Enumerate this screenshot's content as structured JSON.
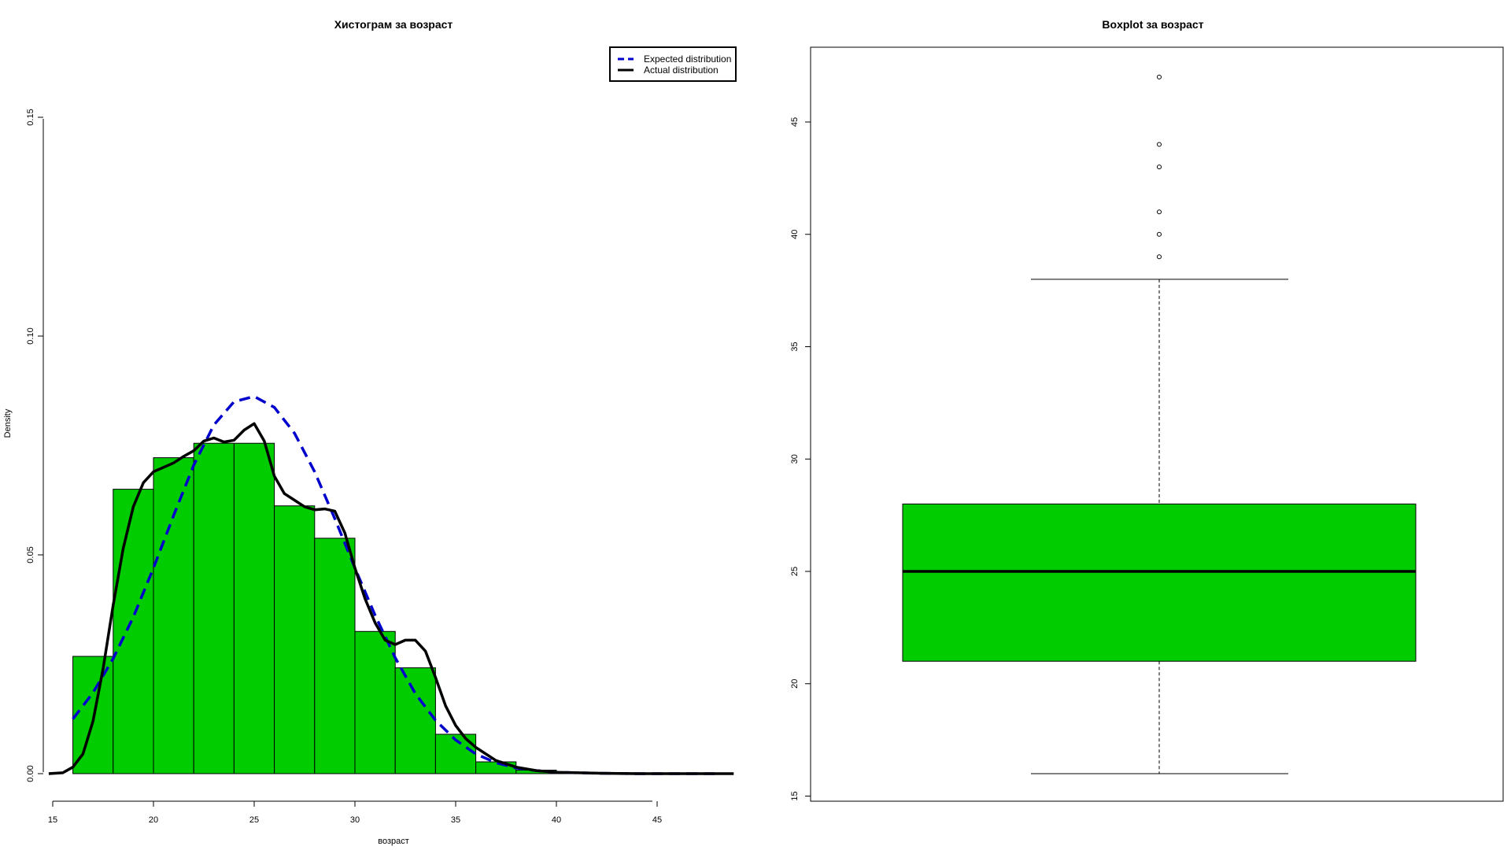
{
  "colors": {
    "fill": "#00cc00",
    "expected": "#0000cc",
    "actual": "#000000"
  },
  "chart_data": [
    {
      "type": "bar",
      "title": "Хистограм за  возраст",
      "xlabel": "возраст",
      "ylabel": "Density",
      "xlim": [
        15,
        49
      ],
      "ylim": [
        0,
        0.15
      ],
      "x_ticks": [
        15,
        20,
        25,
        30,
        35,
        40,
        45
      ],
      "y_ticks": [
        "0.00",
        "0.05",
        "0.10",
        "0.15"
      ],
      "bins": [
        {
          "from": 16,
          "to": 18,
          "density": 0.0268
        },
        {
          "from": 18,
          "to": 20,
          "density": 0.065
        },
        {
          "from": 20,
          "to": 22,
          "density": 0.0722
        },
        {
          "from": 22,
          "to": 24,
          "density": 0.0755
        },
        {
          "from": 24,
          "to": 26,
          "density": 0.0755
        },
        {
          "from": 26,
          "to": 28,
          "density": 0.0612
        },
        {
          "from": 28,
          "to": 30,
          "density": 0.0538
        },
        {
          "from": 30,
          "to": 32,
          "density": 0.0325
        },
        {
          "from": 32,
          "to": 34,
          "density": 0.0242
        },
        {
          "from": 34,
          "to": 36,
          "density": 0.009
        },
        {
          "from": 36,
          "to": 38,
          "density": 0.0027
        },
        {
          "from": 38,
          "to": 40,
          "density": 0.0008
        },
        {
          "from": 40,
          "to": 42,
          "density": 0.0003
        },
        {
          "from": 42,
          "to": 44,
          "density": 0.0002
        },
        {
          "from": 44,
          "to": 46,
          "density": 0.0001
        },
        {
          "from": 46,
          "to": 48,
          "density": 0.0001
        }
      ],
      "legend": {
        "position": "top-right",
        "entries": [
          {
            "label": "Expected distribution",
            "style": "dashed"
          },
          {
            "label": "Actual distribution",
            "style": "solid"
          }
        ]
      },
      "series": [
        {
          "name": "Expected distribution",
          "x": [
            16,
            17,
            18,
            19,
            20,
            21,
            22,
            23,
            24,
            25,
            26,
            27,
            28,
            29,
            30,
            31,
            32,
            33,
            34,
            35,
            36,
            37,
            38,
            39,
            40,
            42,
            44,
            46,
            48
          ],
          "y": [
            0.0125,
            0.0185,
            0.0263,
            0.0358,
            0.047,
            0.059,
            0.0705,
            0.0797,
            0.085,
            0.0862,
            0.0837,
            0.0778,
            0.069,
            0.0583,
            0.047,
            0.0362,
            0.0265,
            0.0183,
            0.0122,
            0.0077,
            0.0045,
            0.0025,
            0.0013,
            0.0007,
            0.0003,
            0.0001,
            0.0,
            0.0,
            0.0
          ]
        },
        {
          "name": "Actual distribution",
          "x": [
            14.8,
            15.5,
            16,
            16.5,
            17,
            17.5,
            18,
            18.5,
            19,
            19.5,
            20,
            20.5,
            21,
            21.5,
            22,
            22.5,
            23,
            23.5,
            24,
            24.5,
            25,
            25.5,
            26,
            26.5,
            27,
            27.5,
            28,
            28.5,
            29,
            29.5,
            30,
            30.5,
            31,
            31.5,
            32,
            32.5,
            33,
            33.5,
            34,
            34.5,
            35,
            35.5,
            36,
            37,
            38,
            39,
            40,
            42,
            44,
            46,
            48.8
          ],
          "y": [
            0.0,
            0.0002,
            0.0015,
            0.0045,
            0.012,
            0.024,
            0.0385,
            0.0515,
            0.061,
            0.0665,
            0.069,
            0.07,
            0.071,
            0.0725,
            0.0738,
            0.076,
            0.0767,
            0.0758,
            0.0762,
            0.0785,
            0.08,
            0.076,
            0.068,
            0.064,
            0.0625,
            0.061,
            0.0603,
            0.0605,
            0.06,
            0.055,
            0.047,
            0.04,
            0.0345,
            0.0305,
            0.0295,
            0.0305,
            0.0305,
            0.028,
            0.022,
            0.0155,
            0.011,
            0.008,
            0.006,
            0.003,
            0.0015,
            0.0007,
            0.0003,
            0.0001,
            0.0,
            0.0,
            0.0
          ]
        }
      ]
    },
    {
      "type": "boxplot",
      "title": "Boxplot за  возраст",
      "ylim": [
        15,
        48
      ],
      "y_ticks": [
        15,
        20,
        25,
        30,
        35,
        40,
        45
      ],
      "stats": {
        "lower_whisker": 16,
        "q1": 21,
        "median": 25,
        "q3": 28,
        "upper_whisker": 38
      },
      "outliers": [
        39,
        40,
        41,
        43,
        44,
        47
      ]
    }
  ]
}
